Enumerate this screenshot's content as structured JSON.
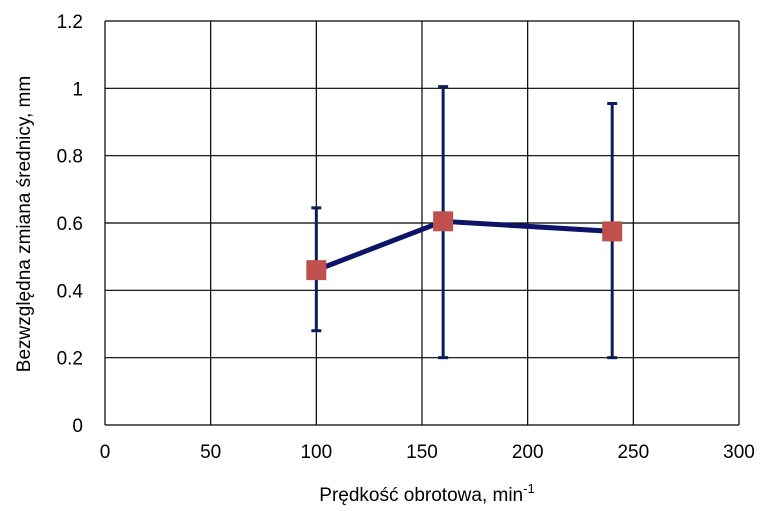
{
  "chart_data": {
    "type": "line",
    "xlabel": "Prędkość obrotowa, min",
    "xlabel_sup": "-1",
    "ylabel": "Bezwzględna zmiana średnicy, mm",
    "xlim": [
      0,
      300
    ],
    "ylim": [
      0,
      1.2
    ],
    "x_ticks": [
      "0",
      "50",
      "100",
      "150",
      "200",
      "250",
      "300"
    ],
    "y_ticks": [
      "0",
      "0.2",
      "0.4",
      "0.6",
      "0.8",
      "1",
      "1.2"
    ],
    "grid": true,
    "legend": "none",
    "series": [
      {
        "x": [
          100,
          160,
          240
        ],
        "y": [
          0.46,
          0.605,
          0.575
        ],
        "error_low": [
          0.28,
          0.2,
          0.2
        ],
        "error_high": [
          0.645,
          1.005,
          0.955
        ],
        "line_color": "#0b1466",
        "marker_color": "#c0504d",
        "error_color": "#0b1e5b"
      }
    ]
  }
}
